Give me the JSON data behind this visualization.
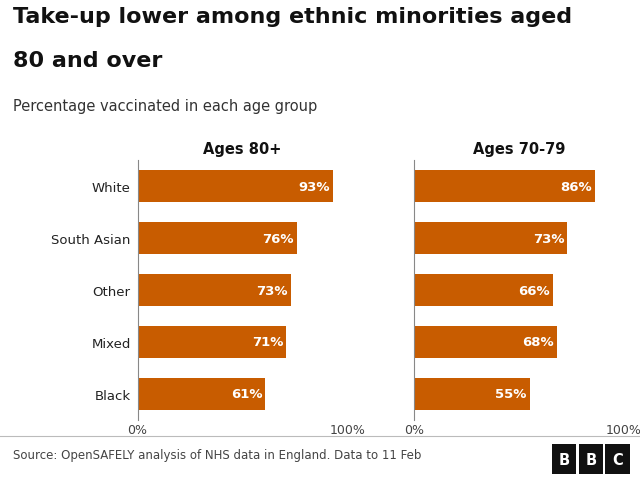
{
  "title_line1": "Take-up lower among ethnic minorities aged",
  "title_line2": "80 and over",
  "subtitle": "Percentage vaccinated in each age group",
  "categories": [
    "White",
    "South Asian",
    "Other",
    "Mixed",
    "Black"
  ],
  "ages_80_plus": [
    93,
    76,
    73,
    71,
    61
  ],
  "ages_70_79": [
    86,
    73,
    66,
    68,
    55
  ],
  "col1_label": "Ages 80+",
  "col2_label": "Ages 70-79",
  "bar_color": "#C85C00",
  "text_color_bar": "#ffffff",
  "background_color": "#ffffff",
  "source_text": "Source: OpenSAFELY analysis of NHS data in England. Data to 11 Feb",
  "bbc_letters": [
    "B",
    "B",
    "C"
  ],
  "title_fontsize": 16,
  "subtitle_fontsize": 10.5,
  "col_label_fontsize": 10.5,
  "bar_label_fontsize": 9.5,
  "category_fontsize": 9.5,
  "axis_tick_fontsize": 9,
  "source_fontsize": 8.5
}
